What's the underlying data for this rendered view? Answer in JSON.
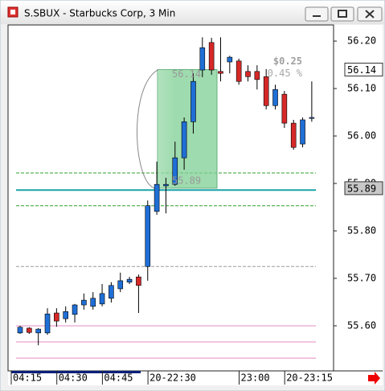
{
  "chart_data": {
    "type": "candlestick",
    "title": "S.SBUX - Starbucks Corp, 3 Min",
    "categories": [
      "04:15",
      null,
      null,
      null,
      null,
      "04:30",
      null,
      null,
      null,
      null,
      "04:45",
      null,
      null,
      null,
      null,
      "20-22:30",
      null,
      null,
      null,
      null,
      null,
      null,
      null,
      null,
      null,
      "23:00",
      null,
      null,
      null,
      null,
      "20-23:15",
      null,
      null
    ],
    "open": [
      55.585,
      55.595,
      55.585,
      55.585,
      55.627,
      55.615,
      55.624,
      55.644,
      55.641,
      55.646,
      55.658,
      55.678,
      55.692,
      55.703,
      55.725,
      55.841,
      55.895,
      55.898,
      55.954,
      56.03,
      56.139,
      56.197,
      56.136,
      56.156,
      56.158,
      56.136,
      56.136,
      56.125,
      56.064,
      56.088,
      56.027,
      55.983,
      56.037
    ],
    "high": [
      55.6,
      55.597,
      55.595,
      55.637,
      55.637,
      55.641,
      55.646,
      55.668,
      55.671,
      55.688,
      55.692,
      55.712,
      55.703,
      55.708,
      55.864,
      55.946,
      55.912,
      55.988,
      56.039,
      56.132,
      56.208,
      56.207,
      56.208,
      56.169,
      56.163,
      56.149,
      56.149,
      56.141,
      56.108,
      56.095,
      56.034,
      56.039,
      56.115
    ],
    "low": [
      55.583,
      55.583,
      55.559,
      55.581,
      55.598,
      55.607,
      55.607,
      55.634,
      55.634,
      55.641,
      55.649,
      55.671,
      55.688,
      55.627,
      55.695,
      55.834,
      55.837,
      55.895,
      55.929,
      56.005,
      56.124,
      56.129,
      56.115,
      56.132,
      56.108,
      56.115,
      56.098,
      56.056,
      56.056,
      56.017,
      55.971,
      55.976,
      56.03
    ],
    "close": [
      55.597,
      55.586,
      55.593,
      55.625,
      55.61,
      55.63,
      55.644,
      55.654,
      55.658,
      55.668,
      55.685,
      55.695,
      55.698,
      55.685,
      55.853,
      55.898,
      55.898,
      55.954,
      56.03,
      56.115,
      56.186,
      56.139,
      56.132,
      56.166,
      56.115,
      56.125,
      56.119,
      56.064,
      56.098,
      56.027,
      55.976,
      56.034,
      56.039
    ],
    "up_color": "#1f6fd6",
    "down_color": "#d62828",
    "ylim": [
      55.505,
      56.234
    ],
    "yticks": [
      {
        "value": 55.6,
        "label": "55.60"
      },
      {
        "value": 55.7,
        "label": "55.70"
      },
      {
        "value": 55.8,
        "label": "55.80"
      },
      {
        "value": 55.9,
        "label": "55.90"
      },
      {
        "value": 56.0,
        "label": "56.00"
      },
      {
        "value": 56.1,
        "label": "56.10"
      },
      {
        "value": 56.2,
        "label": "56.20"
      }
    ],
    "reference_lines": [
      {
        "value": 55.922,
        "color": "#2ca02c",
        "style": "dashed"
      },
      {
        "value": 55.853,
        "color": "#2ca02c",
        "style": "dashed"
      },
      {
        "value": 55.886,
        "color": "#1aa3a8",
        "style": "solid"
      },
      {
        "value": 55.725,
        "color": "#9a9a9a",
        "style": "dashed"
      },
      {
        "value": 55.6,
        "color": "#e58bc4",
        "style": "solid"
      },
      {
        "value": 55.566,
        "color": "#e58bc4",
        "style": "solid"
      },
      {
        "value": 55.532,
        "color": "#e58bc4",
        "style": "solid"
      }
    ],
    "price_labels": [
      {
        "value": 56.14,
        "label": "56.14",
        "fill": "#ffffff"
      },
      {
        "value": 55.89,
        "label": "55.89",
        "fill": "#c8c8c8"
      }
    ],
    "measure": {
      "from": 55.89,
      "to": 56.14,
      "from_label": "55.89",
      "to_label": "56.14",
      "change_label": "$0.25",
      "pct_label": "0.45 %",
      "color": "#7dcf93"
    }
  }
}
